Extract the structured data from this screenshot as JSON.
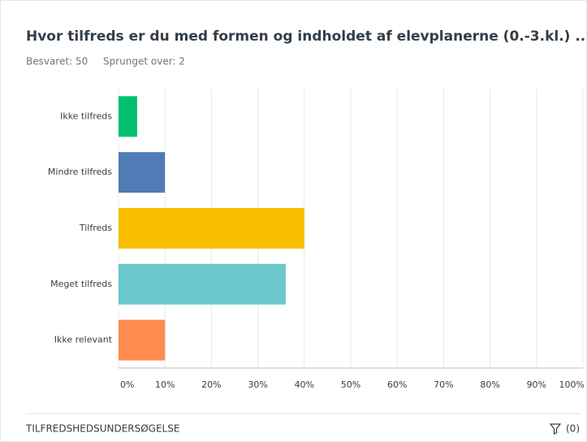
{
  "chart_data": {
    "type": "bar",
    "orientation": "horizontal",
    "title": "Hvor tilfreds er du med formen og indholdet af elevplanerne (0.-3.kl.) ...",
    "answered": "Besvaret: 50",
    "skipped": "Sprunget over: 2",
    "categories": [
      "Ikke tilfreds",
      "Mindre tilfreds",
      "Tilfreds",
      "Meget tilfreds",
      "Ikke relevant"
    ],
    "values": [
      4,
      10,
      40,
      36,
      10
    ],
    "colors": [
      "#00bf6f",
      "#507cb6",
      "#f9be00",
      "#6bc8cd",
      "#ff8b4f"
    ],
    "xlim": [
      0,
      100
    ],
    "xticks": [
      {
        "value": 0,
        "label": "0%"
      },
      {
        "value": 10,
        "label": "10%"
      },
      {
        "value": 20,
        "label": "20%"
      },
      {
        "value": 30,
        "label": "30%"
      },
      {
        "value": 40,
        "label": "40%"
      },
      {
        "value": 50,
        "label": "50%"
      },
      {
        "value": 60,
        "label": "60%"
      },
      {
        "value": 70,
        "label": "70%"
      },
      {
        "value": 80,
        "label": "80%"
      },
      {
        "value": 90,
        "label": "90%"
      },
      {
        "value": 100,
        "label": "100%"
      }
    ],
    "grid": true,
    "footer": "TILFREDSHEDSUNDERSØGELSE",
    "filter_count": "(0)"
  }
}
